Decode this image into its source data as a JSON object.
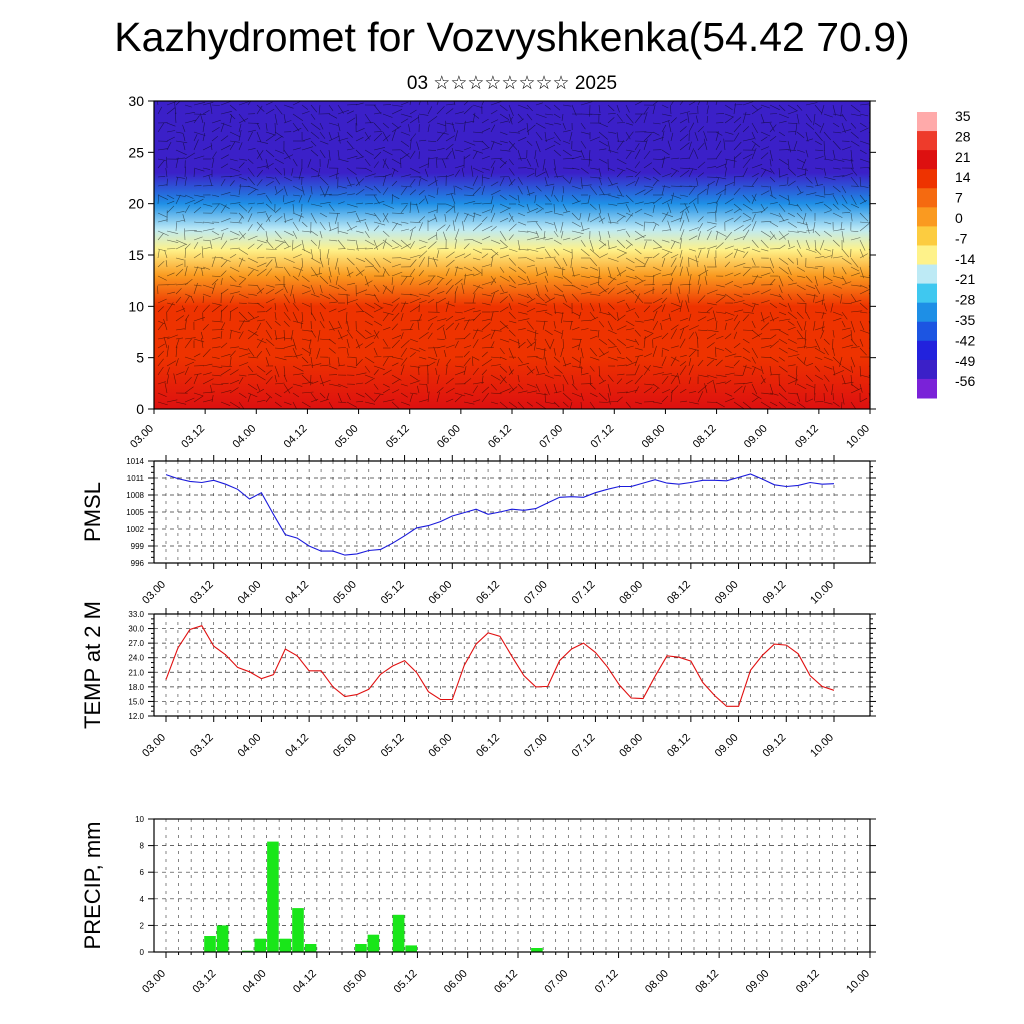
{
  "title": "Kazhydromet for Vozvyshkenka(54.42 70.9)",
  "subtitle": "03 ☆☆☆☆☆☆☆☆ 2025",
  "time_ticks": [
    "03.00",
    "03.12",
    "04.00",
    "04.12",
    "05.00",
    "05.12",
    "06.00",
    "06.12",
    "07.00",
    "07.12",
    "08.00",
    "08.12",
    "09.00",
    "09.12",
    "10.00"
  ],
  "colors": {
    "pmsl_line": "#1a1adb",
    "temp_line": "#e01010",
    "precip_bar": "#19e619",
    "grid": "#444444"
  },
  "colorbar": {
    "labels": [
      "35",
      "28",
      "21",
      "14",
      "7",
      "0",
      "-7",
      "-14",
      "-21",
      "-28",
      "-35",
      "-42",
      "-49",
      "-56"
    ],
    "colors_top_to_bottom": [
      "#ffaaaa",
      "#ee3b2b",
      "#dd1010",
      "#ee3300",
      "#f56a10",
      "#fa9a20",
      "#fccc40",
      "#fef28a",
      "#bdeaf5",
      "#3fc8f0",
      "#1e8fe6",
      "#1c55e2",
      "#2222dd",
      "#3b20c8",
      "#7a22d8"
    ]
  },
  "chart_data": [
    {
      "type": "heatmap",
      "title": "",
      "xlabel": "",
      "ylabel": "",
      "x": [
        "03.00",
        "03.12",
        "04.00",
        "04.12",
        "05.00",
        "05.12",
        "06.00",
        "06.12",
        "07.00",
        "07.12",
        "08.00",
        "08.12",
        "09.00",
        "09.12",
        "10.00"
      ],
      "ylim": [
        0,
        30
      ],
      "yticks": [
        0,
        5,
        10,
        15,
        20,
        25,
        30
      ],
      "temperature_profile": [
        {
          "level": 0,
          "value": 24
        },
        {
          "level": 5,
          "value": 20
        },
        {
          "level": 10,
          "value": 14
        },
        {
          "level": 13,
          "value": 5
        },
        {
          "level": 15.5,
          "value": -8
        },
        {
          "level": 17.5,
          "value": -20
        },
        {
          "level": 20,
          "value": -35
        },
        {
          "level": 23,
          "value": -50
        },
        {
          "level": 27,
          "value": -54
        },
        {
          "level": 30,
          "value": -52
        }
      ],
      "overlay": "wind barbs"
    },
    {
      "type": "line",
      "ylabel": "PMSL",
      "ylim": [
        996,
        1014
      ],
      "yticks": [
        996,
        999,
        1002,
        1005,
        1008,
        1011,
        1014
      ],
      "x": [
        "03.00",
        "03.03",
        "03.06",
        "03.09",
        "03.12",
        "03.15",
        "03.18",
        "03.21",
        "04.00",
        "04.03",
        "04.06",
        "04.09",
        "04.12",
        "04.15",
        "04.18",
        "04.21",
        "05.00",
        "05.03",
        "05.06",
        "05.09",
        "05.12",
        "05.15",
        "05.18",
        "05.21",
        "06.00",
        "06.03",
        "06.06",
        "06.09",
        "06.12",
        "06.15",
        "06.18",
        "06.21",
        "07.00",
        "07.03",
        "07.06",
        "07.09",
        "07.12",
        "07.15",
        "07.18",
        "07.21",
        "08.00",
        "08.03",
        "08.06",
        "08.09",
        "08.12",
        "08.15",
        "08.18",
        "08.21",
        "09.00",
        "09.03",
        "09.06",
        "09.09",
        "09.12",
        "09.15",
        "09.18",
        "09.21",
        "10.00"
      ],
      "series": [
        {
          "values": [
            1011.6,
            1010.9,
            1010.4,
            1010.2,
            1010.6,
            1009.9,
            1009.0,
            1007.3,
            1008.4,
            1004.6,
            1001.0,
            1000.4,
            999.0,
            998.1,
            998.1,
            997.4,
            997.6,
            998.2,
            998.4,
            999.5,
            1000.8,
            1002.2,
            1002.6,
            1003.3,
            1004.3,
            1004.9,
            1005.5,
            1004.6,
            1005.0,
            1005.5,
            1005.3,
            1005.6,
            1006.6,
            1007.6,
            1007.7,
            1007.6,
            1008.4,
            1009.0,
            1009.5,
            1009.5,
            1010.1,
            1010.7,
            1010.1,
            1009.9,
            1010.2,
            1010.6,
            1010.6,
            1010.5,
            1011.1,
            1011.7,
            1010.8,
            1009.8,
            1009.5,
            1009.7,
            1010.2,
            1009.9,
            1010.0
          ]
        }
      ]
    },
    {
      "type": "line",
      "ylabel": "TEMP at 2 M",
      "ylim": [
        12,
        33
      ],
      "yticks": [
        "12.0",
        "15.0",
        "18.0",
        "21.0",
        "24.0",
        "27.0",
        "30.0",
        "33.0"
      ],
      "x": [
        "03.00",
        "03.03",
        "03.06",
        "03.09",
        "03.12",
        "03.15",
        "03.18",
        "03.21",
        "04.00",
        "04.03",
        "04.06",
        "04.09",
        "04.12",
        "04.15",
        "04.18",
        "04.21",
        "05.00",
        "05.03",
        "05.06",
        "05.09",
        "05.12",
        "05.15",
        "05.18",
        "05.21",
        "06.00",
        "06.03",
        "06.06",
        "06.09",
        "06.12",
        "06.15",
        "06.18",
        "06.21",
        "07.00",
        "07.03",
        "07.06",
        "07.09",
        "07.12",
        "07.15",
        "07.18",
        "07.21",
        "08.00",
        "08.03",
        "08.06",
        "08.09",
        "08.12",
        "08.15",
        "08.18",
        "08.21",
        "09.00",
        "09.03",
        "09.06",
        "09.09",
        "09.12",
        "09.15",
        "09.18",
        "09.21",
        "10.00"
      ],
      "series": [
        {
          "values": [
            19.5,
            26.0,
            29.8,
            30.6,
            26.4,
            24.6,
            22.0,
            21.1,
            19.7,
            20.5,
            25.8,
            24.4,
            21.3,
            21.3,
            18.0,
            16.0,
            16.4,
            17.5,
            20.6,
            22.3,
            23.4,
            21.0,
            17.0,
            15.4,
            15.4,
            22.4,
            26.8,
            29.1,
            28.4,
            24.3,
            20.3,
            18.0,
            18.1,
            23.4,
            25.8,
            27.0,
            25.1,
            22.1,
            18.4,
            15.7,
            15.6,
            20.2,
            24.4,
            24.1,
            23.3,
            18.9,
            16.2,
            14.0,
            14.0,
            21.4,
            24.5,
            26.8,
            26.6,
            24.8,
            20.3,
            18.1,
            17.3
          ]
        }
      ]
    },
    {
      "type": "bar",
      "ylabel": "PRECIP, mm",
      "ylim": [
        0,
        10
      ],
      "yticks": [
        0,
        2,
        4,
        6,
        8,
        10
      ],
      "x": [
        "03.00",
        "03.03",
        "03.06",
        "03.09",
        "03.12",
        "03.15",
        "03.18",
        "03.21",
        "04.00",
        "04.03",
        "04.06",
        "04.09",
        "04.12",
        "04.15",
        "04.18",
        "04.21",
        "05.00",
        "05.03",
        "05.06",
        "05.09",
        "05.12",
        "05.15",
        "05.18",
        "05.21",
        "06.00",
        "06.03",
        "06.06",
        "06.09",
        "06.12",
        "06.15",
        "06.18",
        "06.21",
        "07.00",
        "07.03",
        "07.06",
        "07.09",
        "07.12",
        "07.15",
        "07.18",
        "07.21",
        "08.00",
        "08.03",
        "08.06",
        "08.09",
        "08.12",
        "08.15",
        "08.18",
        "08.21",
        "09.00",
        "09.03",
        "09.06",
        "09.09",
        "09.12",
        "09.15",
        "09.18",
        "09.21",
        "10.00"
      ],
      "values": [
        0,
        0,
        0,
        1.2,
        2.0,
        0,
        0.1,
        1.0,
        8.3,
        1.0,
        3.3,
        0.6,
        0,
        0,
        0,
        0.6,
        1.3,
        0,
        2.8,
        0.5,
        0,
        0,
        0,
        0,
        0,
        0,
        0,
        0,
        0,
        0.3,
        0,
        0,
        0,
        0,
        0,
        0,
        0,
        0,
        0,
        0,
        0,
        0,
        0,
        0,
        0,
        0,
        0,
        0,
        0,
        0,
        0,
        0,
        0,
        0,
        0,
        0,
        0
      ]
    }
  ]
}
